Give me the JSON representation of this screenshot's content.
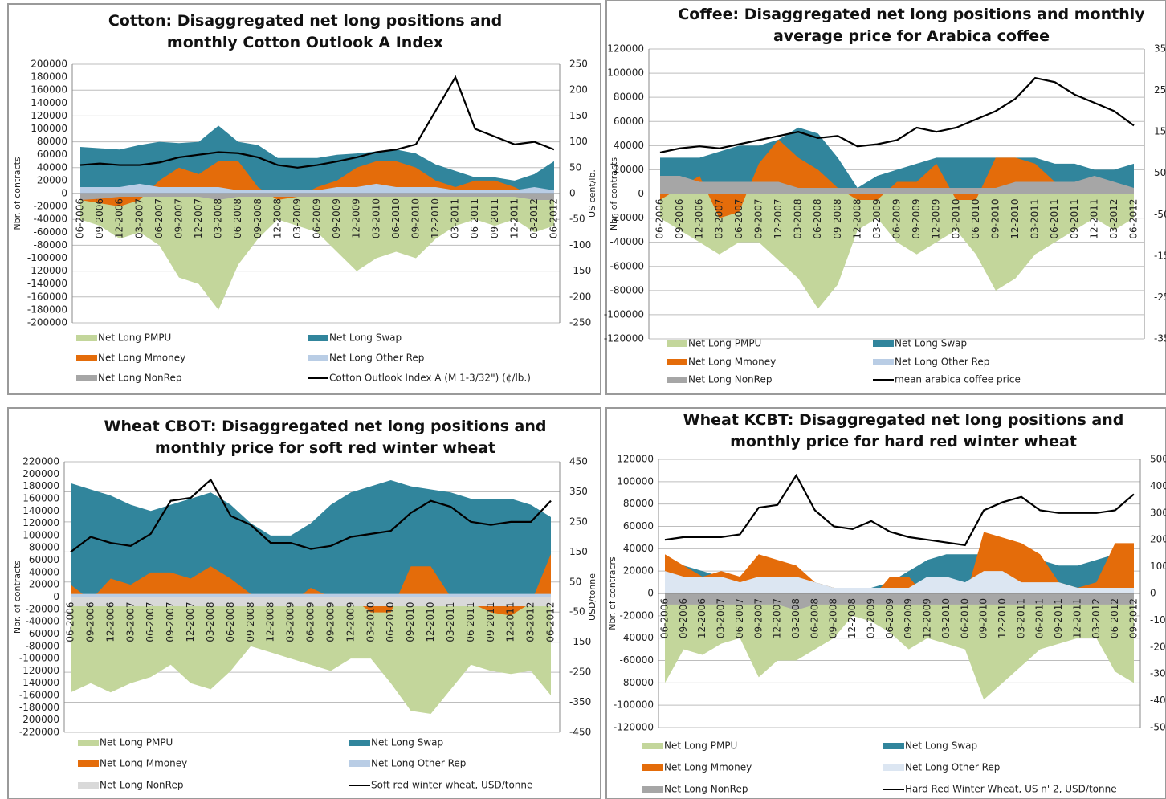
{
  "chart_data": [
    {
      "type": "area_line",
      "title": "Cotton: Disaggregated net long positions and monthly Cotton Outlook A Index",
      "y_label": "Nbr. of contracts",
      "y2_label": "US cent/lb.",
      "categories": [
        "06-2006",
        "09-2006",
        "12-2006",
        "03-2007",
        "06-2007",
        "09-2007",
        "12-2007",
        "03-2008",
        "06-2008",
        "09-2008",
        "12-2008",
        "03-2009",
        "06-2009",
        "09-2009",
        "12-2009",
        "03-2010",
        "06-2010",
        "09-2010",
        "12-2010",
        "03-2011",
        "06-2011",
        "09-2011",
        "12-2011",
        "03-2012",
        "06-2012"
      ],
      "ylim": [
        -200000,
        200000
      ],
      "yticks": [
        200000,
        180000,
        160000,
        140000,
        120000,
        100000,
        80000,
        60000,
        40000,
        20000,
        0,
        -20000,
        -40000,
        -60000,
        -80000,
        -100000,
        -120000,
        -140000,
        -160000,
        -180000,
        -200000
      ],
      "y2lim": [
        -250,
        250
      ],
      "y2ticks": [
        250,
        200,
        150,
        100,
        50,
        0,
        -50,
        -100,
        -150,
        -200,
        -250
      ],
      "grid": "y2",
      "series": [
        {
          "name": "Net Long PMPU",
          "color": "#c3d69b",
          "values": [
            -40000,
            -50000,
            -70000,
            -60000,
            -80000,
            -130000,
            -140000,
            -180000,
            -110000,
            -70000,
            -40000,
            -50000,
            -60000,
            -90000,
            -120000,
            -100000,
            -90000,
            -100000,
            -70000,
            -50000,
            -40000,
            -50000,
            -40000,
            -60000,
            -50000
          ]
        },
        {
          "name": "Net Long Swap",
          "color": "#31859c",
          "values": [
            72000,
            70000,
            68000,
            75000,
            80000,
            78000,
            80000,
            105000,
            80000,
            75000,
            55000,
            55000,
            55000,
            60000,
            62000,
            65000,
            68000,
            62000,
            45000,
            35000,
            25000,
            25000,
            20000,
            30000,
            50000
          ]
        },
        {
          "name": "Net Long Mmoney",
          "color": "#e46c0a",
          "values": [
            -10000,
            -15000,
            -20000,
            -10000,
            20000,
            40000,
            30000,
            50000,
            50000,
            10000,
            -10000,
            -5000,
            10000,
            20000,
            40000,
            50000,
            50000,
            40000,
            20000,
            10000,
            20000,
            20000,
            10000,
            -5000,
            -10000
          ]
        },
        {
          "name": "Net Long Other Rep",
          "color": "#b9cde5",
          "values": [
            10000,
            10000,
            10000,
            15000,
            10000,
            10000,
            10000,
            10000,
            5000,
            5000,
            5000,
            5000,
            5000,
            10000,
            10000,
            15000,
            10000,
            10000,
            10000,
            5000,
            5000,
            5000,
            5000,
            10000,
            5000
          ]
        },
        {
          "name": "Net Long NonRep",
          "color": "#a6a6a6",
          "values": [
            -10000,
            -8000,
            -5000,
            -5000,
            -5000,
            -5000,
            -5000,
            -10000,
            -5000,
            -5000,
            -5000,
            -5000,
            -5000,
            -5000,
            -5000,
            -5000,
            -5000,
            -5000,
            -5000,
            -5000,
            -5000,
            -5000,
            -5000,
            -10000,
            -10000
          ]
        },
        {
          "name": "Cotton Outlook Index A (M 1-3/32\") (¢/lb.)",
          "color": "#000000",
          "axis": "y2",
          "values": [
            55,
            58,
            55,
            55,
            60,
            70,
            75,
            80,
            78,
            70,
            55,
            50,
            55,
            62,
            70,
            80,
            85,
            95,
            160,
            225,
            125,
            110,
            95,
            100,
            85
          ]
        }
      ]
    },
    {
      "type": "area_line",
      "title": "Coffee: Disaggregated net long positions and monthly average price for Arabica coffee",
      "y_label": "Nbr. of contracts",
      "categories": [
        "06-2006",
        "09-2006",
        "12-2006",
        "03-2007",
        "06-2007",
        "09-2007",
        "12-2007",
        "03-2008",
        "06-2008",
        "09-2008",
        "12-2008",
        "03-2009",
        "06-2009",
        "09-2009",
        "12-2009",
        "03-2010",
        "06-2010",
        "09-2010",
        "12-2010",
        "03-2011",
        "06-2011",
        "09-2011",
        "12-2011",
        "03-2012",
        "06-2012"
      ],
      "ylim": [
        -120000,
        120000
      ],
      "yticks": [
        120000,
        100000,
        80000,
        60000,
        40000,
        20000,
        0,
        -20000,
        -40000,
        -60000,
        -80000,
        -100000,
        -120000
      ],
      "y2lim": [
        -350,
        350
      ],
      "y2ticks": [
        350,
        250,
        150,
        50,
        -50,
        -150,
        -250,
        -350
      ],
      "grid": "y",
      "series": [
        {
          "name": "Net Long PMPU",
          "color": "#c3d69b",
          "values": [
            -20000,
            -30000,
            -40000,
            -50000,
            -40000,
            -40000,
            -55000,
            -70000,
            -95000,
            -75000,
            -30000,
            -20000,
            -40000,
            -50000,
            -40000,
            -30000,
            -50000,
            -80000,
            -70000,
            -50000,
            -40000,
            -30000,
            -20000,
            -30000,
            -20000
          ]
        },
        {
          "name": "Net Long Swap",
          "color": "#31859c",
          "values": [
            30000,
            30000,
            30000,
            35000,
            40000,
            40000,
            45000,
            55000,
            50000,
            30000,
            5000,
            15000,
            20000,
            25000,
            30000,
            30000,
            30000,
            30000,
            30000,
            30000,
            25000,
            25000,
            20000,
            20000,
            25000
          ]
        },
        {
          "name": "Net Long Mmoney",
          "color": "#e46c0a",
          "values": [
            -5000,
            5000,
            15000,
            -20000,
            -15000,
            25000,
            45000,
            30000,
            20000,
            5000,
            -5000,
            -5000,
            10000,
            10000,
            25000,
            -5000,
            -5000,
            30000,
            30000,
            25000,
            10000,
            0,
            5000,
            5000,
            0
          ]
        },
        {
          "name": "Net Long Other Rep",
          "color": "#b9cde5",
          "values": [
            5000,
            5000,
            5000,
            5000,
            5000,
            5000,
            5000,
            5000,
            5000,
            5000,
            3000,
            3000,
            3000,
            3000,
            3000,
            3000,
            3000,
            3000,
            3000,
            3000,
            3000,
            3000,
            3000,
            3000,
            3000
          ]
        },
        {
          "name": "Net Long NonRep",
          "color": "#a6a6a6",
          "values": [
            15000,
            15000,
            10000,
            10000,
            10000,
            10000,
            10000,
            5000,
            5000,
            5000,
            5000,
            5000,
            5000,
            5000,
            5000,
            5000,
            5000,
            5000,
            10000,
            10000,
            10000,
            10000,
            15000,
            10000,
            5000
          ]
        },
        {
          "name": "mean arabica coffee price",
          "color": "#000000",
          "axis": "y2",
          "values": [
            100,
            110,
            115,
            110,
            120,
            130,
            140,
            150,
            135,
            140,
            115,
            120,
            130,
            160,
            150,
            160,
            180,
            200,
            230,
            280,
            270,
            240,
            220,
            200,
            165
          ]
        }
      ]
    },
    {
      "type": "area_line",
      "title": "Wheat CBOT: Disaggregated net long positions and monthly price for soft red winter wheat",
      "y_label": "Nbr. of contracts",
      "y2_label": "USD/tonne",
      "categories": [
        "06-2006",
        "09-2006",
        "12-2006",
        "03-2007",
        "06-2007",
        "09-2007",
        "12-2007",
        "03-2008",
        "06-2008",
        "09-2008",
        "12-2008",
        "03-2009",
        "06-2009",
        "09-2009",
        "12-2009",
        "03-2010",
        "06-2010",
        "09-2010",
        "12-2010",
        "03-2011",
        "06-2011",
        "09-2011",
        "12-2011",
        "03-2012",
        "06-2012"
      ],
      "ylim": [
        -220000,
        220000
      ],
      "yticks": [
        220000,
        200000,
        180000,
        160000,
        140000,
        120000,
        100000,
        80000,
        60000,
        40000,
        20000,
        0,
        -20000,
        -40000,
        -60000,
        -80000,
        -100000,
        -120000,
        -140000,
        -160000,
        -180000,
        -200000,
        -220000
      ],
      "y2lim": [
        -450,
        450
      ],
      "y2ticks": [
        450,
        350,
        250,
        150,
        50,
        -50,
        -150,
        -250,
        -350,
        -450
      ],
      "grid": "y2",
      "series": [
        {
          "name": "Net Long PMPU",
          "color": "#c3d69b",
          "values": [
            -155000,
            -140000,
            -155000,
            -140000,
            -130000,
            -110000,
            -140000,
            -150000,
            -120000,
            -80000,
            -90000,
            -100000,
            -110000,
            -120000,
            -100000,
            -100000,
            -140000,
            -185000,
            -190000,
            -150000,
            -110000,
            -120000,
            -125000,
            -120000,
            -160000
          ]
        },
        {
          "name": "Net Long Swap",
          "color": "#31859c",
          "values": [
            185000,
            175000,
            165000,
            150000,
            140000,
            150000,
            160000,
            170000,
            150000,
            120000,
            100000,
            100000,
            120000,
            150000,
            170000,
            180000,
            190000,
            180000,
            175000,
            170000,
            160000,
            160000,
            160000,
            150000,
            130000
          ]
        },
        {
          "name": "Net Long Mmoney",
          "color": "#e46c0a",
          "values": [
            20000,
            -5000,
            30000,
            20000,
            40000,
            40000,
            30000,
            50000,
            30000,
            5000,
            -10000,
            -10000,
            15000,
            0,
            0,
            -25000,
            -25000,
            50000,
            50000,
            0,
            -10000,
            -25000,
            -30000,
            -10000,
            70000
          ]
        },
        {
          "name": "Net Long Other Rep",
          "color": "#b9cde5",
          "values": [
            5000,
            5000,
            5000,
            5000,
            5000,
            5000,
            5000,
            5000,
            5000,
            5000,
            5000,
            5000,
            5000,
            5000,
            5000,
            5000,
            5000,
            5000,
            5000,
            5000,
            5000,
            5000,
            5000,
            5000,
            5000
          ]
        },
        {
          "name": "Net Long NonRep",
          "color": "#d9d9d9",
          "values": [
            -15000,
            -15000,
            -15000,
            -15000,
            -15000,
            -15000,
            -15000,
            -15000,
            -15000,
            -15000,
            -15000,
            -15000,
            -15000,
            -15000,
            -15000,
            -15000,
            -15000,
            -15000,
            -15000,
            -15000,
            -15000,
            -15000,
            -15000,
            -15000,
            -15000
          ]
        },
        {
          "name": "Soft red winter wheat, USD/tonne",
          "color": "#000000",
          "axis": "y2",
          "values": [
            150,
            200,
            180,
            170,
            210,
            320,
            330,
            390,
            270,
            240,
            180,
            180,
            160,
            170,
            200,
            210,
            220,
            280,
            320,
            300,
            250,
            240,
            250,
            250,
            320
          ]
        }
      ]
    },
    {
      "type": "area_line",
      "title": "Wheat KCBT: Disaggregated net long positions and monthly price for hard red winter wheat",
      "y_label": "Nbr. of contracrs",
      "categories": [
        "06-2006",
        "09-2006",
        "12-2006",
        "03-2007",
        "06-2007",
        "09-2007",
        "12-2007",
        "03-2008",
        "06-2008",
        "09-2008",
        "12-2008",
        "03-2009",
        "06-2009",
        "09-2009",
        "12-2009",
        "03-2010",
        "06-2010",
        "09-2010",
        "12-2010",
        "03-2011",
        "06-2011",
        "09-2011",
        "12-2011",
        "03-2012",
        "06-2012",
        "09-2012"
      ],
      "ylim": [
        -120000,
        120000
      ],
      "yticks": [
        120000,
        100000,
        80000,
        60000,
        40000,
        20000,
        0,
        -20000,
        -40000,
        -60000,
        -80000,
        -100000,
        -120000
      ],
      "y2lim": [
        -500,
        500
      ],
      "y2ticks": [
        500,
        400,
        300,
        200,
        100,
        0,
        -100,
        -200,
        -300,
        -400,
        -500
      ],
      "grid": "y",
      "series": [
        {
          "name": "Net Long PMPU",
          "color": "#c3d69b",
          "values": [
            -80000,
            -50000,
            -55000,
            -45000,
            -40000,
            -75000,
            -60000,
            -60000,
            -50000,
            -40000,
            -20000,
            -25000,
            -35000,
            -50000,
            -40000,
            -45000,
            -50000,
            -95000,
            -80000,
            -65000,
            -50000,
            -45000,
            -40000,
            -40000,
            -70000,
            -80000
          ]
        },
        {
          "name": "Net Long Swap",
          "color": "#31859c",
          "values": [
            30000,
            25000,
            20000,
            15000,
            10000,
            10000,
            10000,
            10000,
            10000,
            5000,
            5000,
            5000,
            10000,
            20000,
            30000,
            35000,
            35000,
            35000,
            35000,
            35000,
            30000,
            25000,
            25000,
            30000,
            35000,
            30000
          ]
        },
        {
          "name": "Net Long Mmoney",
          "color": "#e46c0a",
          "values": [
            35000,
            25000,
            15000,
            20000,
            15000,
            35000,
            30000,
            25000,
            10000,
            5000,
            -5000,
            -5000,
            15000,
            15000,
            -5000,
            -5000,
            -5000,
            55000,
            50000,
            45000,
            35000,
            10000,
            5000,
            10000,
            45000,
            45000
          ]
        },
        {
          "name": "Net Long Other Rep",
          "color": "#dce6f2",
          "values": [
            20000,
            15000,
            15000,
            15000,
            10000,
            15000,
            15000,
            15000,
            10000,
            5000,
            5000,
            5000,
            5000,
            5000,
            15000,
            15000,
            10000,
            20000,
            20000,
            10000,
            10000,
            10000,
            5000,
            5000,
            5000,
            5000
          ]
        },
        {
          "name": "Net Long NonRep",
          "color": "#a6a6a6",
          "values": [
            -10000,
            -10000,
            -10000,
            -10000,
            -10000,
            -10000,
            -10000,
            -15000,
            -10000,
            -10000,
            -10000,
            -10000,
            -10000,
            -10000,
            -10000,
            -10000,
            -10000,
            -10000,
            -10000,
            -10000,
            -10000,
            -10000,
            -10000,
            -10000,
            -10000,
            -10000
          ]
        },
        {
          "name": "Hard Red Winter Wheat, US n' 2, USD/tonne",
          "color": "#000000",
          "axis": "y2",
          "values": [
            200,
            210,
            210,
            210,
            220,
            320,
            330,
            440,
            310,
            250,
            240,
            270,
            230,
            210,
            200,
            190,
            180,
            310,
            340,
            360,
            310,
            300,
            300,
            300,
            310,
            370
          ]
        }
      ]
    }
  ]
}
